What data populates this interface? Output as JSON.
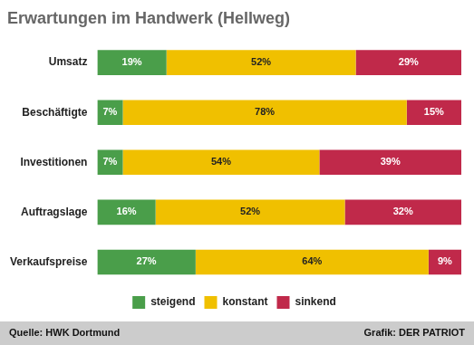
{
  "chart_data": {
    "type": "bar",
    "orientation": "horizontal",
    "stacked": true,
    "title": "Erwartungen im Handwerk (Hellweg)",
    "categories": [
      "Umsatz",
      "Beschäftigte",
      "Investitionen",
      "Auftragslage",
      "Verkaufspreise"
    ],
    "series": [
      {
        "name": "steigend",
        "color": "#4a9e4a",
        "values": [
          19,
          7,
          7,
          16,
          27
        ],
        "value_labels": [
          "19%",
          "7%",
          "7%",
          "16%",
          "27%"
        ]
      },
      {
        "name": "konstant",
        "color": "#f0c000",
        "values": [
          52,
          78,
          54,
          52,
          64
        ],
        "value_labels": [
          "52%",
          "78%",
          "54%",
          "52%",
          "64%"
        ]
      },
      {
        "name": "sinkend",
        "color": "#c0294a",
        "values": [
          29,
          15,
          39,
          32,
          9
        ],
        "value_labels": [
          "29%",
          "15%",
          "39%",
          "32%",
          "9%"
        ]
      }
    ],
    "xlim": [
      0,
      100
    ],
    "grid": false,
    "legend": "bottom",
    "data_labels": true,
    "tick_labels": "y",
    "annotations": [
      "Quelle: HWK Dortmund",
      "Grafik: DER PATRIOT"
    ]
  }
}
